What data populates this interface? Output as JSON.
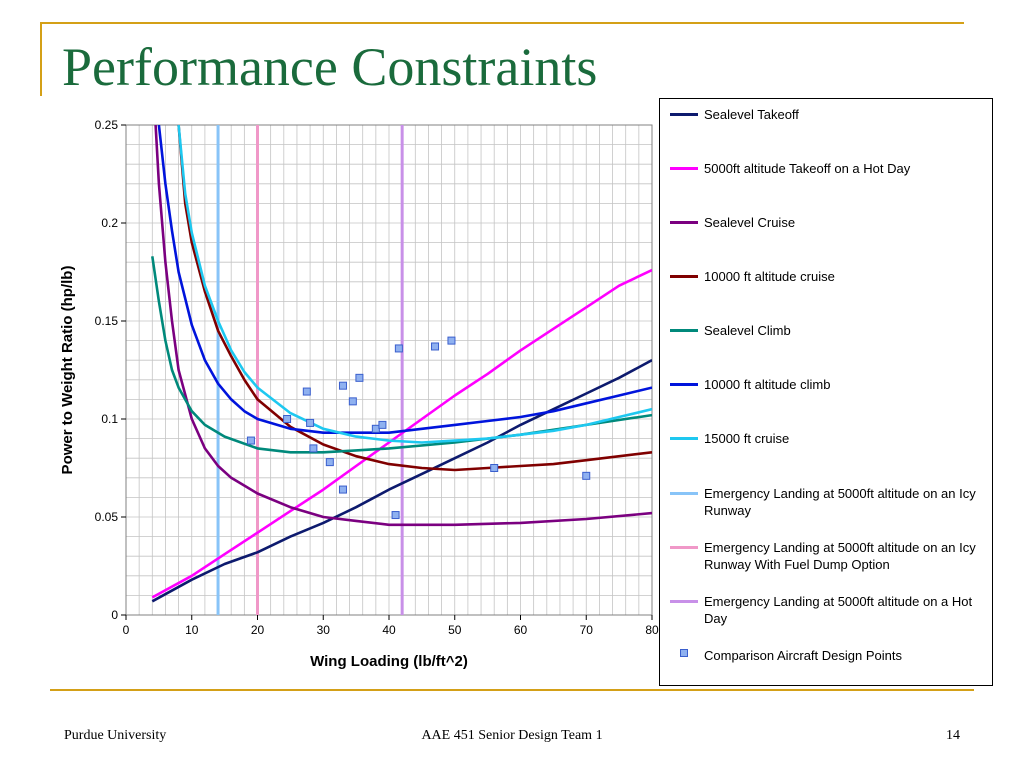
{
  "slide": {
    "title": "Performance Constraints",
    "footer_left": "Purdue University",
    "footer_center": "AAE 451 Senior Design Team 1",
    "footer_right": "14"
  },
  "colors": {
    "title": "#1a6b3c",
    "accent_rule": "#d4a017"
  },
  "chart_data": {
    "type": "line",
    "title": "",
    "xlabel": "Wing Loading (lb/ft^2)",
    "ylabel": "Power to Weight Ratio (hp/lb)",
    "xlim": [
      0,
      80
    ],
    "ylim": [
      0,
      0.25
    ],
    "x_ticks": [
      "0",
      "10",
      "20",
      "30",
      "40",
      "50",
      "60",
      "70",
      "80"
    ],
    "y_ticks": [
      "0",
      "0.05",
      "0.1",
      "0.15",
      "0.2",
      "0.25"
    ],
    "grid": true,
    "legend_position": "right",
    "series": [
      {
        "name": "Sealevel Takeoff",
        "color": "#0d1a6e",
        "kind": "line",
        "points": [
          [
            4,
            0.007
          ],
          [
            10,
            0.018
          ],
          [
            15,
            0.026
          ],
          [
            20,
            0.032
          ],
          [
            25,
            0.04
          ],
          [
            30,
            0.047
          ],
          [
            35,
            0.055
          ],
          [
            40,
            0.064
          ],
          [
            45,
            0.072
          ],
          [
            50,
            0.08
          ],
          [
            55,
            0.088
          ],
          [
            60,
            0.097
          ],
          [
            65,
            0.105
          ],
          [
            70,
            0.113
          ],
          [
            75,
            0.121
          ],
          [
            80,
            0.13
          ]
        ]
      },
      {
        "name": "5000ft altitude Takeoff on a Hot Day",
        "color": "#ff00ff",
        "kind": "line",
        "points": [
          [
            4,
            0.009
          ],
          [
            10,
            0.02
          ],
          [
            15,
            0.031
          ],
          [
            20,
            0.042
          ],
          [
            25,
            0.053
          ],
          [
            30,
            0.064
          ],
          [
            35,
            0.076
          ],
          [
            40,
            0.088
          ],
          [
            45,
            0.1
          ],
          [
            50,
            0.112
          ],
          [
            55,
            0.123
          ],
          [
            60,
            0.135
          ],
          [
            65,
            0.146
          ],
          [
            70,
            0.157
          ],
          [
            75,
            0.168
          ],
          [
            80,
            0.176
          ]
        ]
      },
      {
        "name": "Sealevel Cruise",
        "color": "#7b0080",
        "kind": "line",
        "points": [
          [
            4.5,
            0.25
          ],
          [
            5,
            0.22
          ],
          [
            6,
            0.18
          ],
          [
            7,
            0.15
          ],
          [
            8,
            0.125
          ],
          [
            10,
            0.1
          ],
          [
            12,
            0.085
          ],
          [
            14,
            0.076
          ],
          [
            16,
            0.07
          ],
          [
            18,
            0.066
          ],
          [
            20,
            0.062
          ],
          [
            25,
            0.055
          ],
          [
            30,
            0.05
          ],
          [
            35,
            0.048
          ],
          [
            40,
            0.046
          ],
          [
            50,
            0.046
          ],
          [
            60,
            0.047
          ],
          [
            70,
            0.049
          ],
          [
            80,
            0.052
          ]
        ]
      },
      {
        "name": "10000 ft altitude cruise",
        "color": "#800000",
        "kind": "line",
        "points": [
          [
            8,
            0.25
          ],
          [
            9,
            0.21
          ],
          [
            10,
            0.19
          ],
          [
            12,
            0.165
          ],
          [
            14,
            0.145
          ],
          [
            16,
            0.132
          ],
          [
            18,
            0.12
          ],
          [
            20,
            0.11
          ],
          [
            25,
            0.096
          ],
          [
            30,
            0.087
          ],
          [
            35,
            0.081
          ],
          [
            40,
            0.077
          ],
          [
            45,
            0.075
          ],
          [
            50,
            0.074
          ],
          [
            55,
            0.075
          ],
          [
            60,
            0.076
          ],
          [
            65,
            0.077
          ],
          [
            70,
            0.079
          ],
          [
            80,
            0.083
          ]
        ]
      },
      {
        "name": "Sealevel Climb",
        "color": "#00897b",
        "kind": "line",
        "points": [
          [
            4,
            0.183
          ],
          [
            5,
            0.16
          ],
          [
            6,
            0.14
          ],
          [
            7,
            0.125
          ],
          [
            8,
            0.116
          ],
          [
            10,
            0.104
          ],
          [
            12,
            0.097
          ],
          [
            15,
            0.091
          ],
          [
            20,
            0.085
          ],
          [
            25,
            0.083
          ],
          [
            30,
            0.083
          ],
          [
            35,
            0.084
          ],
          [
            40,
            0.085
          ],
          [
            50,
            0.088
          ],
          [
            60,
            0.092
          ],
          [
            70,
            0.097
          ],
          [
            80,
            0.102
          ]
        ]
      },
      {
        "name": "10000 ft altitude climb",
        "color": "#0014dc",
        "kind": "line",
        "points": [
          [
            5,
            0.25
          ],
          [
            6,
            0.22
          ],
          [
            7,
            0.196
          ],
          [
            8,
            0.175
          ],
          [
            10,
            0.148
          ],
          [
            12,
            0.13
          ],
          [
            14,
            0.118
          ],
          [
            16,
            0.11
          ],
          [
            18,
            0.104
          ],
          [
            20,
            0.1
          ],
          [
            25,
            0.095
          ],
          [
            30,
            0.093
          ],
          [
            35,
            0.093
          ],
          [
            40,
            0.093
          ],
          [
            45,
            0.095
          ],
          [
            50,
            0.097
          ],
          [
            55,
            0.099
          ],
          [
            60,
            0.101
          ],
          [
            65,
            0.104
          ],
          [
            70,
            0.108
          ],
          [
            75,
            0.112
          ],
          [
            80,
            0.116
          ]
        ]
      },
      {
        "name": "15000 ft cruise",
        "color": "#1ec8f0",
        "kind": "line",
        "points": [
          [
            8,
            0.25
          ],
          [
            9,
            0.215
          ],
          [
            10,
            0.195
          ],
          [
            12,
            0.168
          ],
          [
            14,
            0.15
          ],
          [
            16,
            0.135
          ],
          [
            18,
            0.124
          ],
          [
            20,
            0.116
          ],
          [
            25,
            0.103
          ],
          [
            30,
            0.095
          ],
          [
            35,
            0.091
          ],
          [
            40,
            0.089
          ],
          [
            45,
            0.088
          ],
          [
            50,
            0.089
          ],
          [
            55,
            0.09
          ],
          [
            60,
            0.092
          ],
          [
            65,
            0.094
          ],
          [
            70,
            0.097
          ],
          [
            75,
            0.101
          ],
          [
            80,
            0.105
          ]
        ]
      },
      {
        "name": "Emergency Landing at 5000ft altitude on an Icy Runway",
        "color": "#88c4f8",
        "kind": "vline",
        "x": 14
      },
      {
        "name": "Emergency  Landing at 5000ft altitude on an Icy Runway With Fuel Dump Option",
        "color": "#f098c8",
        "kind": "vline",
        "x": 20
      },
      {
        "name": "Emergency  Landing at 5000ft altitude on a  Hot Day",
        "color": "#c890e8",
        "kind": "vline",
        "x": 42
      },
      {
        "name": "Comparison Aircraft Design Points",
        "color": "#8fb1f0",
        "kind": "scatter",
        "points": [
          [
            19,
            0.089
          ],
          [
            24.5,
            0.1
          ],
          [
            27.5,
            0.114
          ],
          [
            28,
            0.098
          ],
          [
            28.5,
            0.085
          ],
          [
            31,
            0.078
          ],
          [
            33,
            0.117
          ],
          [
            33,
            0.064
          ],
          [
            34.5,
            0.109
          ],
          [
            35.5,
            0.121
          ],
          [
            38,
            0.095
          ],
          [
            39,
            0.097
          ],
          [
            41,
            0.051
          ],
          [
            41.5,
            0.136
          ],
          [
            47,
            0.137
          ],
          [
            49.5,
            0.14
          ],
          [
            56,
            0.075
          ],
          [
            70,
            0.071
          ]
        ]
      }
    ]
  }
}
